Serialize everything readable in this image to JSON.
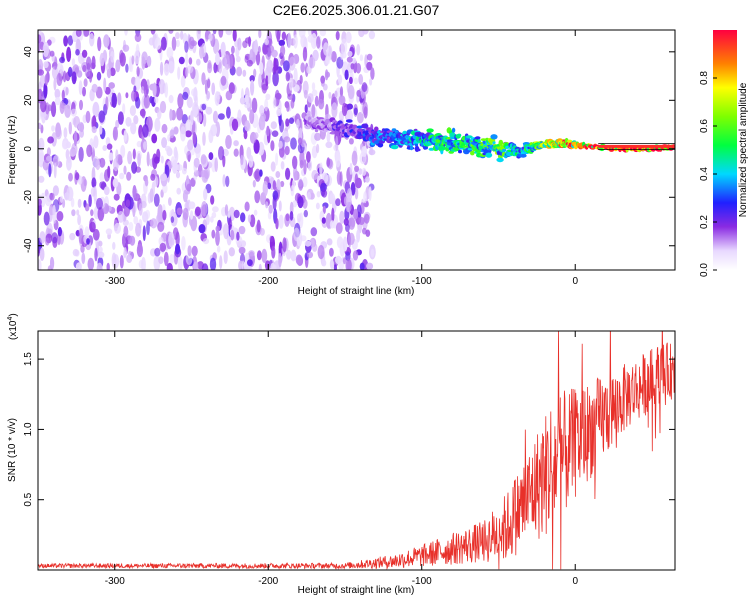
{
  "title": "C2E6.2025.306.01.21.G07",
  "colors": {
    "snr_line": "#e8302a",
    "axis": "#000000",
    "bg": "#ffffff"
  },
  "chart_data": [
    {
      "type": "heatmap",
      "name": "spectrogram",
      "xlabel": "Height of straight line (km)",
      "ylabel": "Frequency (Hz)",
      "xlim": [
        -350,
        65
      ],
      "ylim": [
        -50,
        49
      ],
      "xticks": [
        -300,
        -200,
        -100,
        0
      ],
      "yticks": [
        -40,
        -20,
        0,
        20,
        40
      ],
      "noise_region_x": [
        -350,
        -140
      ],
      "signal_track": {
        "x": [
          -175,
          -150,
          -130,
          -110,
          -90,
          -70,
          -50,
          -35,
          -20,
          -5,
          10,
          30,
          50,
          65
        ],
        "freq": [
          11,
          8,
          5,
          4,
          3,
          2,
          0,
          -1,
          2,
          2,
          1,
          0,
          0,
          1
        ],
        "spread": [
          4,
          5,
          6,
          6,
          6,
          6,
          6,
          4,
          2,
          2,
          1,
          1,
          1,
          1
        ],
        "amplitude": [
          0.15,
          0.2,
          0.3,
          0.35,
          0.45,
          0.5,
          0.55,
          0.4,
          0.7,
          0.8,
          0.85,
          0.95,
          0.98,
          0.9
        ]
      },
      "colorbar": {
        "label": "Normalized spectral amplitude",
        "range": [
          0,
          1
        ],
        "ticks": [
          "0.0",
          "0.2",
          "0.4",
          "0.6",
          "0.8"
        ]
      }
    },
    {
      "type": "line",
      "name": "snr",
      "xlabel": "Height of straight line (km)",
      "ylabel": "SNR (10 * v/v)",
      "multiplier_label": "(x10",
      "multiplier_exp": "4",
      "multiplier_close": ")",
      "xlim": [
        -350,
        65
      ],
      "ylim": [
        0,
        1.7
      ],
      "xticks": [
        -300,
        -200,
        -100,
        0
      ],
      "yticks": [
        "0.5",
        "1.0",
        "1.5"
      ],
      "ytick_values": [
        0.5,
        1.0,
        1.5
      ],
      "trend": {
        "x": [
          -350,
          -250,
          -150,
          -120,
          -100,
          -80,
          -60,
          -45,
          -35,
          -25,
          -15,
          -5,
          5,
          15,
          25,
          35,
          45,
          55,
          65
        ],
        "y": [
          0.03,
          0.03,
          0.03,
          0.06,
          0.1,
          0.15,
          0.2,
          0.3,
          0.45,
          0.6,
          0.75,
          0.85,
          0.95,
          1.05,
          1.15,
          1.25,
          1.32,
          1.4,
          1.42
        ]
      },
      "noise_amplitude": {
        "x": [
          -350,
          -150,
          -120,
          -100,
          -60,
          -30,
          -15,
          0,
          30,
          65
        ],
        "amp": [
          0.015,
          0.02,
          0.05,
          0.08,
          0.15,
          0.35,
          0.5,
          0.4,
          0.25,
          0.2
        ]
      }
    }
  ]
}
